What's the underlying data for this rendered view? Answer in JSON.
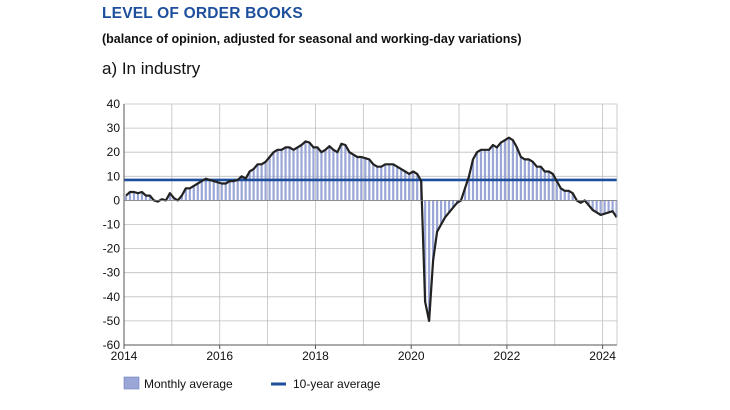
{
  "header": {
    "title": "LEVEL OF ORDER BOOKS",
    "subtitle": "(balance of opinion, adjusted for seasonal and working-day variations)",
    "panel": "a) In industry"
  },
  "chart_data": {
    "type": "bar",
    "xlabel": "",
    "ylabel": "",
    "xlim": [
      2014.0,
      2024.3
    ],
    "ylim": [
      -60,
      40
    ],
    "yticks": [
      40,
      30,
      20,
      10,
      0,
      -10,
      -20,
      -30,
      -40,
      -50,
      -60
    ],
    "xticks": [
      "2014",
      "2016",
      "2018",
      "2020",
      "2022",
      "2024"
    ],
    "grid": true,
    "legend": "bottom",
    "colors": {
      "bars": "#9aa6d6",
      "line": "#222222",
      "average": "#1d4f9c"
    },
    "average_value": 8.5,
    "series": [
      {
        "name": "Monthly average",
        "kind": "bar+line",
        "x_start": "2014-01",
        "frequency": "monthly",
        "values": [
          2,
          3.5,
          3.5,
          3,
          3.5,
          2,
          2,
          0,
          -0.5,
          0.5,
          0,
          3,
          1,
          0,
          2,
          5,
          5,
          6,
          7,
          8,
          9,
          8.5,
          8,
          7.5,
          7,
          7,
          8,
          8,
          8.5,
          10,
          9,
          12,
          13,
          15,
          15,
          16,
          18,
          20,
          21,
          21,
          22,
          22,
          21,
          22,
          23,
          24.5,
          24,
          22,
          22,
          20,
          21,
          22.5,
          21,
          20,
          23.5,
          23,
          20,
          19,
          18,
          18,
          17.5,
          17,
          15,
          14,
          14,
          15,
          15,
          15,
          14,
          13,
          12,
          11,
          12,
          11,
          8,
          -42,
          -50,
          -25,
          -13,
          -10,
          -7,
          -5,
          -3,
          -1,
          0,
          5,
          10,
          17,
          20,
          21,
          21,
          21,
          23,
          22,
          24,
          25,
          26,
          25,
          22,
          18,
          17,
          17,
          16,
          14,
          14,
          12,
          12,
          11,
          8,
          5,
          4,
          4,
          3,
          0,
          -1,
          0,
          -2,
          -4,
          -5,
          -6,
          -5.5,
          -5,
          -4.5,
          -7
        ]
      },
      {
        "name": "10-year average",
        "kind": "hline",
        "value": 8.5
      }
    ]
  }
}
